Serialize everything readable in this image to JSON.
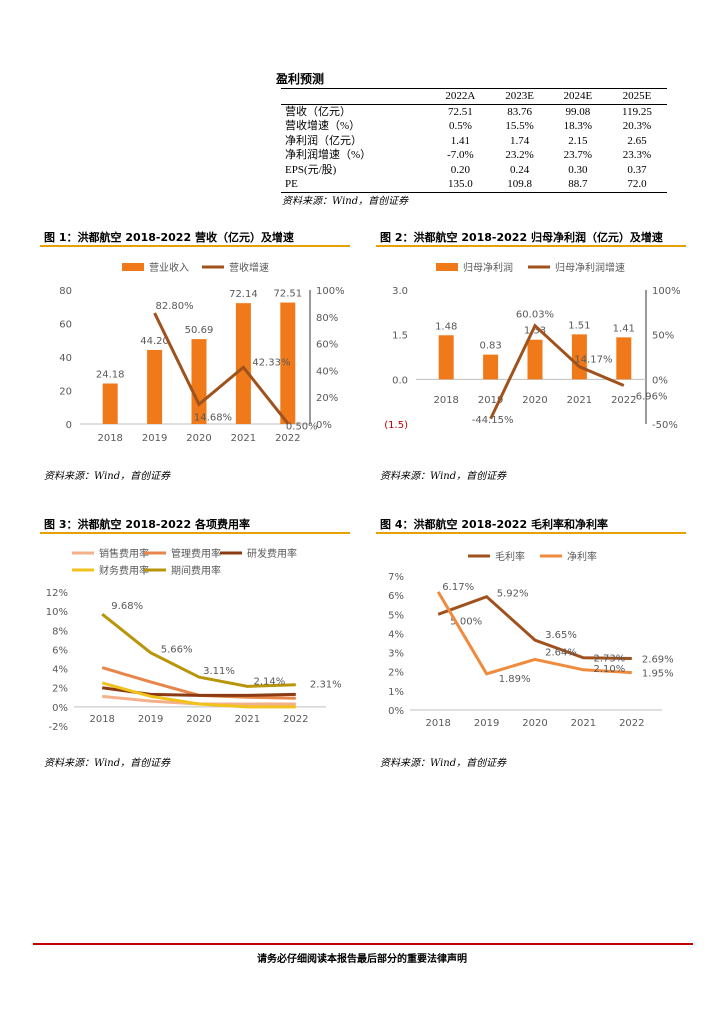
{
  "forecast_table": {
    "title": "盈利预测",
    "headers": [
      "",
      "2022A",
      "2023E",
      "2024E",
      "2025E"
    ],
    "rows": [
      {
        "label": "营收（亿元）",
        "values": [
          "72.51",
          "83.76",
          "99.08",
          "119.25"
        ]
      },
      {
        "label": "营收增速（%）",
        "values": [
          "0.5%",
          "15.5%",
          "18.3%",
          "20.3%"
        ]
      },
      {
        "label": "净利润（亿元）",
        "values": [
          "1.41",
          "1.74",
          "2.15",
          "2.65"
        ]
      },
      {
        "label": "净利润增速（%）",
        "values": [
          "-7.0%",
          "23.2%",
          "23.7%",
          "23.3%"
        ]
      },
      {
        "label": "EPS(元/股)",
        "values": [
          "0.20",
          "0.24",
          "0.30",
          "0.37"
        ]
      },
      {
        "label": "PE",
        "values": [
          "135.0",
          "109.8",
          "88.7",
          "72.0"
        ]
      }
    ],
    "source": "资料来源：Wind，首创证券"
  },
  "figures": {
    "fig1": {
      "title": "图 1：洪都航空 2018-2022 营收（亿元）及增速",
      "source": "资料来源：Wind，首创证券"
    },
    "fig2": {
      "title": "图 2：洪都航空 2018-2022 归母净利润（亿元）及增速",
      "source": "资料来源：Wind，首创证券"
    },
    "fig3": {
      "title": "图 3：洪都航空 2018-2022 各项费用率",
      "source": "资料来源：Wind，首创证券"
    },
    "fig4": {
      "title": "图 4：洪都航空 2018-2022 毛利率和净利率",
      "source": "资料来源：Wind，首创证券"
    }
  },
  "footer": {
    "disclaimer": "请务必仔细阅读本报告最后部分的重要法律声明"
  },
  "chart_data": [
    {
      "id": "fig1",
      "type": "bar+line",
      "categories": [
        "2018",
        "2019",
        "2020",
        "2021",
        "2022"
      ],
      "series": [
        {
          "name": "营业收入",
          "kind": "bar",
          "axis": "left",
          "color": "#f07a1a",
          "values": [
            24.18,
            44.2,
            50.69,
            72.14,
            72.51
          ],
          "labels": [
            "24.18",
            "44.20",
            "50.69",
            "72.14",
            "72.51"
          ]
        },
        {
          "name": "营收增速",
          "kind": "line",
          "axis": "right",
          "color": "#a0521d",
          "values": [
            null,
            82.8,
            14.68,
            42.33,
            0.5
          ],
          "labels": [
            "",
            "82.80%",
            "14.68%",
            "42.33%",
            "0.50%"
          ]
        }
      ],
      "left_axis": {
        "min": 0,
        "max": 80,
        "ticks": [
          "0",
          "20",
          "40",
          "60",
          "80"
        ]
      },
      "right_axis": {
        "min": 0,
        "max": 100,
        "ticks": [
          "0%",
          "20%",
          "40%",
          "60%",
          "80%",
          "100%"
        ]
      }
    },
    {
      "id": "fig2",
      "type": "bar+line",
      "categories": [
        "2018",
        "2019",
        "2020",
        "2021",
        "2022"
      ],
      "series": [
        {
          "name": "归母净利润",
          "kind": "bar",
          "axis": "left",
          "color": "#f07a1a",
          "values": [
            1.48,
            0.83,
            1.33,
            1.51,
            1.41
          ],
          "labels": [
            "1.48",
            "0.83",
            "1.33",
            "1.51",
            "1.41"
          ]
        },
        {
          "name": "归母净利润增速",
          "kind": "line",
          "axis": "right",
          "color": "#a0521d",
          "values": [
            null,
            -44.15,
            60.03,
            14.17,
            -6.96
          ],
          "labels": [
            "",
            "-44.15%",
            "60.03%",
            "14.17%",
            "-6.96%"
          ]
        }
      ],
      "left_axis": {
        "min": -1.5,
        "max": 3.0,
        "ticks": [
          "(1.5)",
          "0.0",
          "1.5",
          "3.0"
        ]
      },
      "right_axis": {
        "min": -50,
        "max": 100,
        "ticks": [
          "-50%",
          "0%",
          "50%",
          "100%"
        ]
      }
    },
    {
      "id": "fig3",
      "type": "line",
      "categories": [
        "2018",
        "2019",
        "2020",
        "2021",
        "2022"
      ],
      "series": [
        {
          "name": "销售费用率",
          "color": "#f4b08a",
          "values": [
            1.1,
            0.6,
            0.3,
            0.3,
            0.3
          ]
        },
        {
          "name": "管理费用率",
          "color": "#e8854a",
          "values": [
            4.1,
            2.6,
            1.2,
            1.0,
            0.9
          ]
        },
        {
          "name": "研发费用率",
          "color": "#8b3a12",
          "values": [
            2.0,
            1.3,
            1.2,
            1.2,
            1.3
          ]
        },
        {
          "name": "财务费用率",
          "color": "#f2c21c",
          "values": [
            2.5,
            1.1,
            0.3,
            0.0,
            0.0
          ]
        },
        {
          "name": "期间费用率",
          "color": "#b8960c",
          "values": [
            9.68,
            5.66,
            3.11,
            2.14,
            2.31
          ],
          "labels": [
            "9.68%",
            "5.66%",
            "3.11%",
            "2.14%",
            "2.31%"
          ]
        }
      ],
      "y_axis": {
        "min": -2,
        "max": 12,
        "ticks": [
          "-2%",
          "0%",
          "2%",
          "4%",
          "6%",
          "8%",
          "10%",
          "12%"
        ]
      }
    },
    {
      "id": "fig4",
      "type": "line",
      "categories": [
        "2018",
        "2019",
        "2020",
        "2021",
        "2022"
      ],
      "series": [
        {
          "name": "毛利率",
          "color": "#a0521d",
          "values": [
            5.0,
            5.92,
            3.65,
            2.73,
            2.69
          ],
          "labels": [
            "5.00%",
            "5.92%",
            "3.65%",
            "2.73%",
            "2.69%"
          ]
        },
        {
          "name": "净利率",
          "color": "#f08a3c",
          "values": [
            6.17,
            1.89,
            2.64,
            2.1,
            1.95
          ],
          "labels": [
            "6.17%",
            "1.89%",
            "2.64%",
            "2.10%",
            "1.95%"
          ]
        }
      ],
      "y_axis": {
        "min": 0,
        "max": 7,
        "ticks": [
          "0%",
          "1%",
          "2%",
          "3%",
          "4%",
          "5%",
          "6%",
          "7%"
        ]
      }
    }
  ]
}
